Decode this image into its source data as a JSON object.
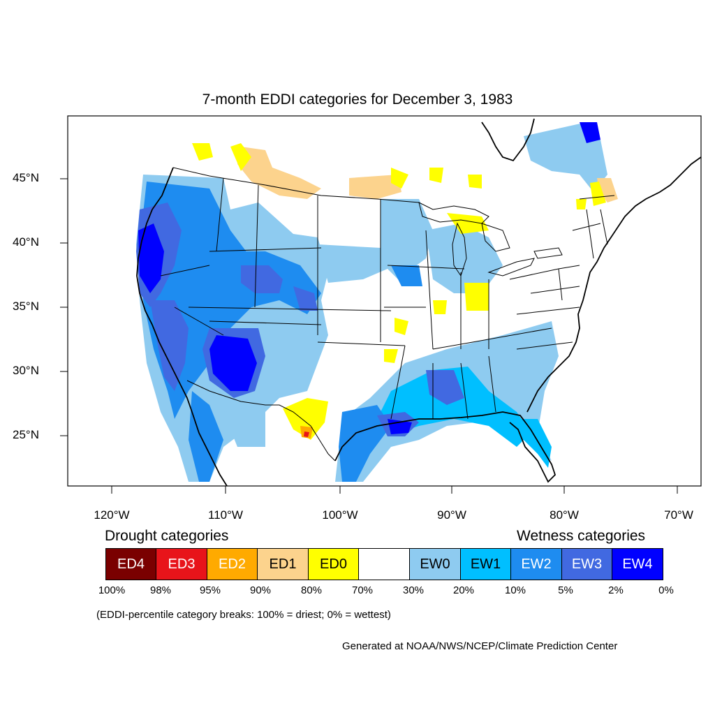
{
  "title": "7-month EDDI categories for December 3, 1983",
  "lat_labels": [
    "45°N",
    "40°N",
    "35°N",
    "30°N",
    "25°N"
  ],
  "lon_labels": [
    "120°W",
    "110°W",
    "100°W",
    "90°W",
    "80°W",
    "70°W"
  ],
  "legend": {
    "drought_heading": "Drought categories",
    "wetness_heading": "Wetness categories",
    "categories": [
      {
        "label": "ED4",
        "color": "#7a0000",
        "text_color": "#ffffff"
      },
      {
        "label": "ED3",
        "color": "#e8141a",
        "text_color": "#ffffff"
      },
      {
        "label": "ED2",
        "color": "#ffaa00",
        "text_color": "#ffffff"
      },
      {
        "label": "ED1",
        "color": "#fcd38d",
        "text_color": "#000000"
      },
      {
        "label": "ED0",
        "color": "#ffff00",
        "text_color": "#000000"
      },
      {
        "label": "",
        "color": "#ffffff",
        "text_color": "#000000"
      },
      {
        "label": "EW0",
        "color": "#8ecbf0",
        "text_color": "#000000"
      },
      {
        "label": "EW1",
        "color": "#00bfff",
        "text_color": "#000000"
      },
      {
        "label": "EW2",
        "color": "#1e8cf0",
        "text_color": "#ffffff"
      },
      {
        "label": "EW3",
        "color": "#4169e1",
        "text_color": "#ffffff"
      },
      {
        "label": "EW4",
        "color": "#0000ff",
        "text_color": "#ffffff"
      }
    ],
    "breaks": [
      "100%",
      "98%",
      "95%",
      "90%",
      "80%",
      "70%",
      "30%",
      "20%",
      "10%",
      "5%",
      "2%",
      "0%"
    ],
    "note": "(EDDI-percentile category breaks: 100% = driest; 0% = wettest)"
  },
  "credit": "Generated at NOAA/NWS/NCEP/Climate Prediction Center",
  "colors": {
    "ew0": "#8ecbf0",
    "ew1": "#00bfff",
    "ew2": "#1e8cf0",
    "ew3": "#4169e1",
    "ew4": "#0000ff",
    "ed0": "#ffff00",
    "ed1": "#fcd38d",
    "ed2": "#ffaa00",
    "ed3": "#e8141a",
    "ed4": "#7a0000"
  }
}
